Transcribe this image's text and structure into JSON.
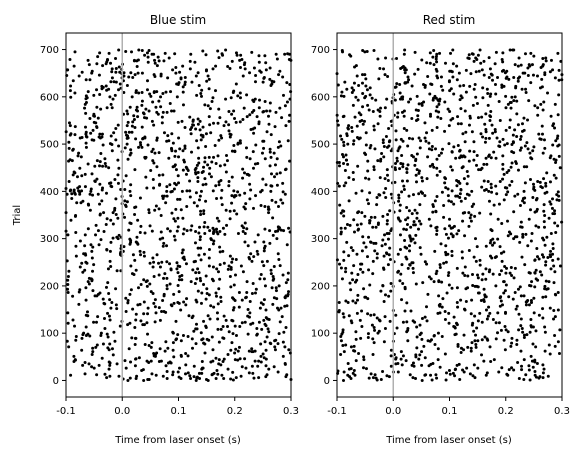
{
  "chart_data": [
    {
      "type": "scatter",
      "title": "Blue stim",
      "xlabel": "Time from laser onset (s)",
      "ylabel": "Trial",
      "xlim": [
        -0.1,
        0.3
      ],
      "ylim": [
        -35,
        735
      ],
      "xticks": [
        "-0.1",
        "0.0",
        "0.1",
        "0.2",
        "0.3"
      ],
      "yticks": [
        "0",
        "100",
        "200",
        "300",
        "400",
        "500",
        "600",
        "700"
      ],
      "vline": {
        "x": 0.0,
        "color": "#b0b0b0"
      },
      "marker_color": "#000000",
      "trials": [
        0,
        699
      ],
      "spikes_shown": "approx. 1500 spike events, each marker = one spike (time, trial)"
    },
    {
      "type": "scatter",
      "title": "Red stim",
      "xlabel": "Time from laser onset (s)",
      "ylabel": "",
      "xlim": [
        -0.1,
        0.3
      ],
      "ylim": [
        -35,
        735
      ],
      "xticks": [
        "-0.1",
        "0.0",
        "0.1",
        "0.2",
        "0.3"
      ],
      "yticks": [
        "0",
        "100",
        "200",
        "300",
        "400",
        "500",
        "600",
        "700"
      ],
      "vline": {
        "x": 0.0,
        "color": "#b0b0b0"
      },
      "marker_color": "#000000",
      "trials": [
        0,
        699
      ],
      "spikes_shown": "approx. 1500 spike events, each marker = one spike (time, trial)"
    }
  ]
}
